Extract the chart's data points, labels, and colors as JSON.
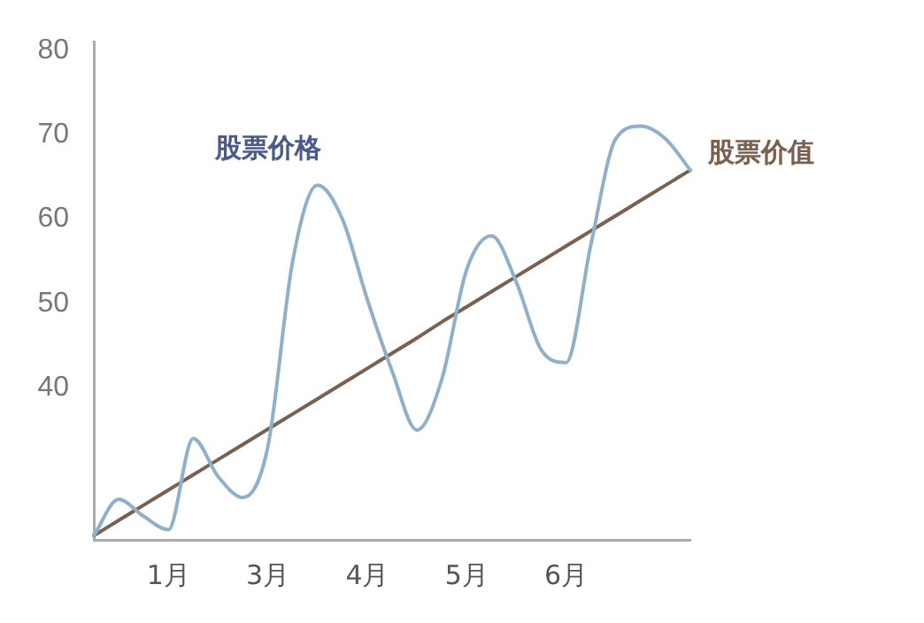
{
  "chart_data": {
    "type": "line",
    "ylim": [
      22,
      81
    ],
    "yticks": [
      40,
      50,
      60,
      70,
      80
    ],
    "grid": false,
    "legend": false,
    "marker": "none",
    "line_style": "solid",
    "categories": [
      null,
      null,
      null,
      "1月",
      null,
      null,
      null,
      "3月",
      null,
      null,
      null,
      "4月",
      null,
      null,
      null,
      "5月",
      null,
      null,
      null,
      "6月",
      null,
      null,
      null,
      null,
      null
    ],
    "series": [
      {
        "name": "股票价格",
        "color": "#8fb0c8",
        "values": [
          22.5,
          26.8,
          24.8,
          23.2,
          34,
          29.5,
          27,
          33,
          55,
          64,
          60,
          50.5,
          42,
          35,
          41,
          54,
          58,
          52.5,
          44.5,
          43,
          57,
          69.5,
          71,
          69.5,
          65.8
        ]
      },
      {
        "name": "股票价值",
        "color": "#7a6050",
        "values": [
          22.5,
          24.3,
          26.1,
          27.9,
          29.7,
          31.5,
          33.3,
          35.1,
          36.9,
          38.7,
          40.5,
          42.3,
          44.1,
          45.9,
          47.8,
          49.6,
          51.4,
          53.2,
          55,
          56.8,
          58.6,
          60.4,
          62.2,
          64,
          65.8
        ]
      }
    ]
  }
}
